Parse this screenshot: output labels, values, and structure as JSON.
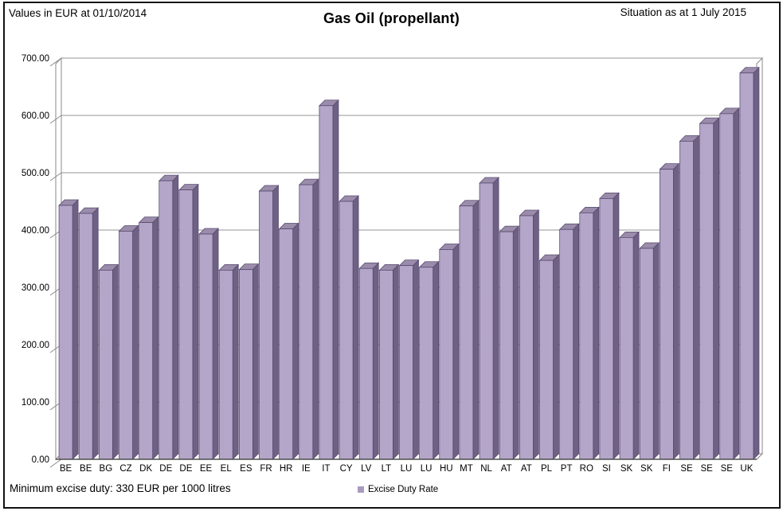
{
  "header": {
    "left_note": "Values in EUR at 01/10/2014",
    "title": "Gas Oil (propellant)",
    "right_note": "Situation as at 1 July 2015"
  },
  "footer": {
    "min_duty_note": "Minimum excise duty: 330 EUR per 1000 litres"
  },
  "legend": {
    "label": "Excise Duty Rate",
    "swatch_color": "#a99bc0"
  },
  "chart_data": {
    "type": "bar",
    "style": "3d-column",
    "title": "Gas Oil (propellant)",
    "series_name": "Excise Duty Rate",
    "categories": [
      "BE",
      "BE",
      "BG",
      "CZ",
      "DK",
      "DE",
      "DE",
      "EE",
      "EL",
      "ES",
      "FR",
      "HR",
      "IE",
      "IT",
      "CY",
      "LV",
      "LT",
      "LU",
      "LU",
      "HU",
      "MT",
      "NL",
      "AT",
      "AT",
      "PL",
      "PT",
      "RO",
      "SI",
      "SK",
      "SK",
      "FI",
      "SE",
      "SE",
      "SE",
      "UK"
    ],
    "values": [
      443,
      429,
      330,
      398,
      413,
      486,
      470,
      393,
      330,
      331,
      468,
      402,
      479,
      617,
      450,
      333,
      330,
      338,
      335,
      366,
      442,
      482,
      397,
      425,
      347,
      401,
      430,
      455,
      387,
      368,
      506,
      555,
      586,
      603,
      674
    ],
    "ylim": [
      0,
      700
    ],
    "ytick_step": 100,
    "ytick_labels": [
      "0.00",
      "100.00",
      "200.00",
      "300.00",
      "400.00",
      "500.00",
      "600.00",
      "700.00"
    ],
    "grid": true,
    "legend_position": "bottom-center",
    "annotation_minimum": 330,
    "colors": {
      "bar_front": "#b4a6c9",
      "bar_top": "#9b8cab",
      "bar_side": "#6e6184",
      "bar_stroke": "#55486e",
      "gridline": "#969696",
      "wall_stroke": "#8a8a8a",
      "baseline": "#4d4d4d"
    }
  }
}
